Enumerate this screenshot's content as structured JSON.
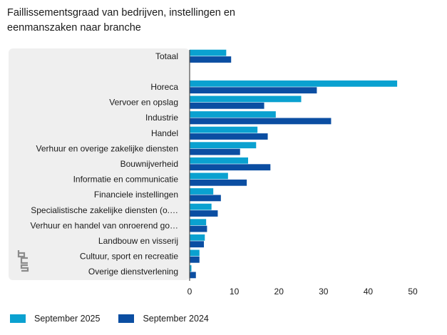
{
  "title": "Faillissementsgraad van bedrijven, instellingen en eenmanszaken naar branche",
  "colors": {
    "series_2025": "#0aa1d0",
    "series_2024": "#0b4ea2",
    "panel": "#efefef",
    "axis": "#4d4d4d"
  },
  "logo_icon": "cbs-logo-icon",
  "chart_data": {
    "type": "bar",
    "orientation": "horizontal",
    "categories": [
      "Totaal",
      "",
      "Horeca",
      "Vervoer en opslag",
      "Industrie",
      "Handel",
      "Verhuur en overige zakelijke diensten",
      "Bouwnijverheid",
      "Informatie en communicatie",
      "Financiele instellingen",
      "Specialistische zakelijke diensten (o.…",
      "Verhuur en handel van onroerend go…",
      "Landbouw en visserij",
      "Cultuur, sport en recreatie",
      "Overige dienstverlening"
    ],
    "series": [
      {
        "name": "September 2025",
        "values": [
          8.2,
          null,
          46.5,
          25.0,
          19.3,
          15.2,
          14.9,
          13.1,
          8.6,
          5.3,
          4.9,
          3.7,
          3.4,
          2.2,
          0.4
        ]
      },
      {
        "name": "September 2024",
        "values": [
          9.3,
          null,
          28.5,
          16.7,
          31.7,
          17.5,
          11.3,
          18.1,
          12.8,
          7.0,
          6.3,
          3.9,
          3.2,
          2.2,
          1.4
        ]
      }
    ],
    "xticks": [
      0,
      10,
      20,
      30,
      40,
      50
    ],
    "xlim": [
      0,
      50
    ],
    "xlabel": "",
    "ylabel": "",
    "grid": false,
    "legend_position": "bottom-left"
  }
}
